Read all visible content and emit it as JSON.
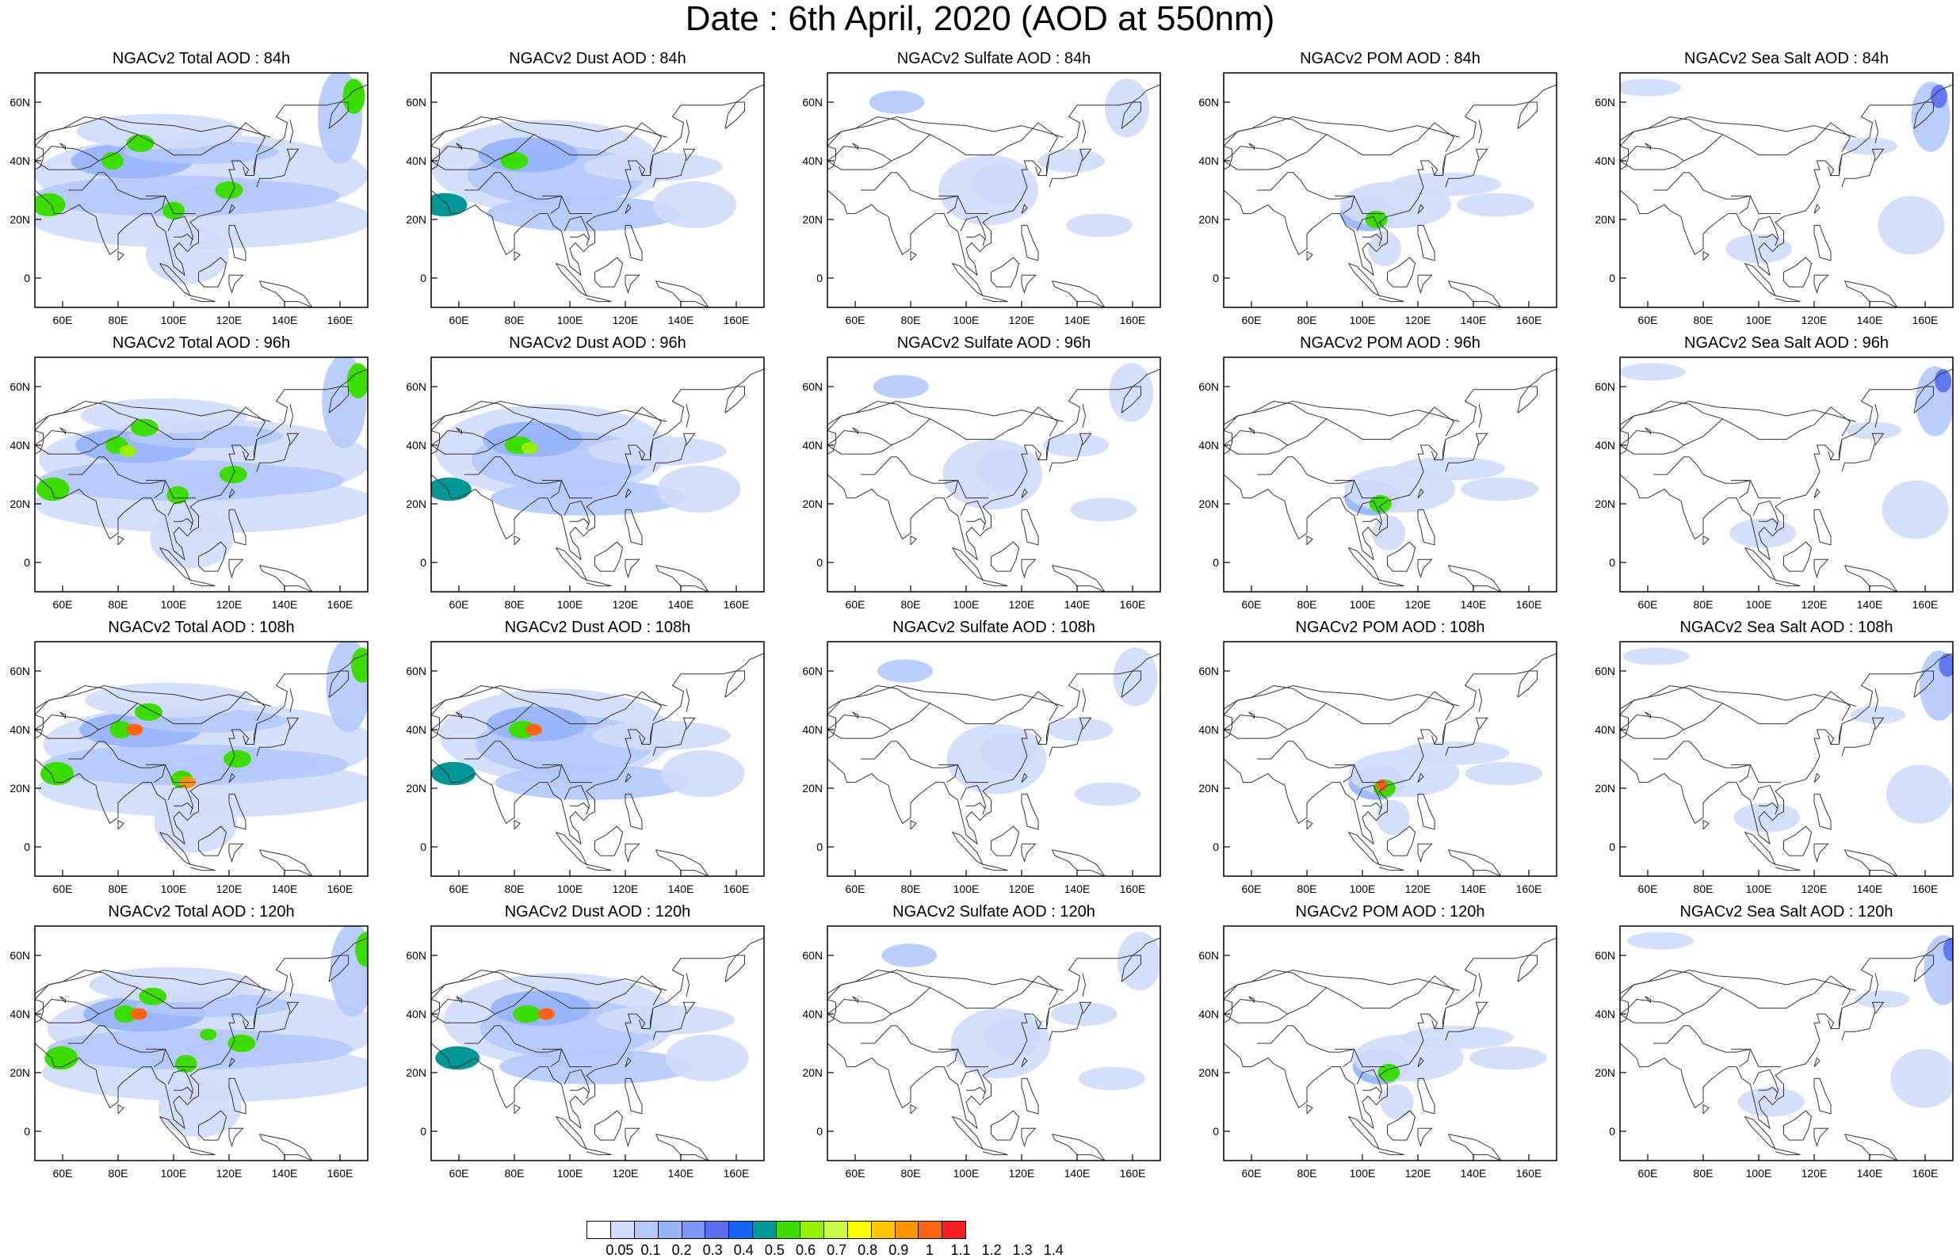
{
  "title": "Date : 6th April, 2020 (AOD at 550nm)",
  "x_ticks": [
    "60E",
    "80E",
    "100E",
    "120E",
    "140E",
    "160E"
  ],
  "y_ticks": [
    "60N",
    "40N",
    "20N",
    "0"
  ],
  "rows": [
    {
      "panels": [
        {
          "title": "NGACv2 Total AOD : 84h",
          "species": "total",
          "forecast_hour": 84
        },
        {
          "title": "NGACv2 Dust AOD : 84h",
          "species": "dust",
          "forecast_hour": 84
        },
        {
          "title": "NGACv2 Sulfate AOD : 84h",
          "species": "sulfate",
          "forecast_hour": 84
        },
        {
          "title": "NGACv2 POM AOD : 84h",
          "species": "pom",
          "forecast_hour": 84
        },
        {
          "title": "NGACv2 Sea Salt AOD : 84h",
          "species": "seasalt",
          "forecast_hour": 84
        }
      ]
    },
    {
      "panels": [
        {
          "title": "NGACv2 Total AOD : 96h",
          "species": "total",
          "forecast_hour": 96
        },
        {
          "title": "NGACv2 Dust AOD : 96h",
          "species": "dust",
          "forecast_hour": 96
        },
        {
          "title": "NGACv2 Sulfate AOD : 96h",
          "species": "sulfate",
          "forecast_hour": 96
        },
        {
          "title": "NGACv2 POM AOD : 96h",
          "species": "pom",
          "forecast_hour": 96
        },
        {
          "title": "NGACv2 Sea Salt AOD : 96h",
          "species": "seasalt",
          "forecast_hour": 96
        }
      ]
    },
    {
      "panels": [
        {
          "title": "NGACv2 Total AOD : 108h",
          "species": "total",
          "forecast_hour": 108
        },
        {
          "title": "NGACv2 Dust AOD : 108h",
          "species": "dust",
          "forecast_hour": 108
        },
        {
          "title": "NGACv2 Sulfate AOD : 108h",
          "species": "sulfate",
          "forecast_hour": 108
        },
        {
          "title": "NGACv2 POM AOD : 108h",
          "species": "pom",
          "forecast_hour": 108
        },
        {
          "title": "NGACv2 Sea Salt AOD : 108h",
          "species": "seasalt",
          "forecast_hour": 108
        }
      ]
    },
    {
      "panels": [
        {
          "title": "NGACv2 Total AOD : 120h",
          "species": "total",
          "forecast_hour": 120
        },
        {
          "title": "NGACv2 Dust AOD : 120h",
          "species": "dust",
          "forecast_hour": 120
        },
        {
          "title": "NGACv2 Sulfate AOD : 120h",
          "species": "sulfate",
          "forecast_hour": 120
        },
        {
          "title": "NGACv2 POM AOD : 120h",
          "species": "pom",
          "forecast_hour": 120
        },
        {
          "title": "NGACv2 Sea Salt  AOD : 120h",
          "species": "seasalt",
          "forecast_hour": 120
        }
      ]
    }
  ],
  "colorbar": {
    "labels": [
      "0.05",
      "0.1",
      "0.2",
      "0.3",
      "0.4",
      "0.5",
      "0.6",
      "0.7",
      "0.8",
      "0.9",
      "1",
      "1.1",
      "1.2",
      "1.3",
      "1.4"
    ],
    "colors": [
      "#ffffff",
      "#d2dcfa",
      "#b4c8fa",
      "#96b4fa",
      "#7c96f8",
      "#5a6ef0",
      "#1464f0",
      "#009696",
      "#3cdc00",
      "#96f000",
      "#c8fa46",
      "#ffff00",
      "#ffc800",
      "#ff9600",
      "#ff6414",
      "#fa1e1e"
    ]
  }
}
